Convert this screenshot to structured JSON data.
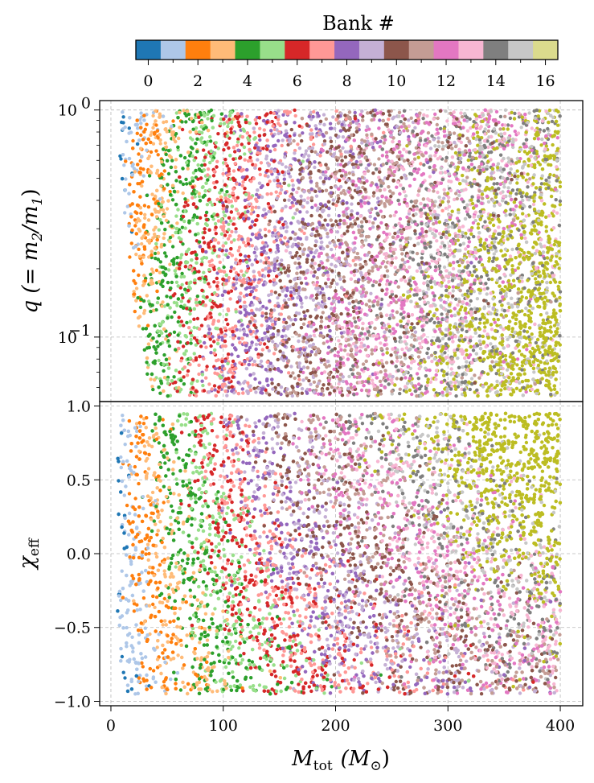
{
  "chart_data": {
    "type": "scatter",
    "colorbar": {
      "title": "Bank #",
      "ticks": [
        0,
        2,
        4,
        6,
        8,
        10,
        12,
        14,
        16
      ],
      "tick_labels": [
        "0",
        "2",
        "4",
        "6",
        "8",
        "10",
        "12",
        "14",
        "16"
      ],
      "colors": [
        "#1f77b4",
        "#aec7e8",
        "#ff7f0e",
        "#ffbb78",
        "#2ca02c",
        "#98df8a",
        "#d62728",
        "#ff9896",
        "#9467bd",
        "#c5b0d5",
        "#8c564b",
        "#c49c94",
        "#e377c2",
        "#f7b6d2",
        "#7f7f7f",
        "#c7c7c7",
        "#dbdb8d"
      ]
    },
    "point_colors": [
      "#1f77b4",
      "#aec7e8",
      "#ff7f0e",
      "#ffbb78",
      "#2ca02c",
      "#98df8a",
      "#d62728",
      "#ff9896",
      "#9467bd",
      "#c5b0d5",
      "#8c564b",
      "#c49c94",
      "#e377c2",
      "#f7b6d2",
      "#7f7f7f",
      "#c7c7c7",
      "#bcbd22"
    ],
    "x": {
      "label_main": "M",
      "label_sub": "tot",
      "label_unit_open": "(M",
      "label_unit_sub": "⊙",
      "label_unit_close": ")",
      "lim": [
        -10,
        420
      ],
      "ticks": [
        0,
        100,
        200,
        300,
        400
      ],
      "tick_labels": [
        "0",
        "100",
        "200",
        "300",
        "400"
      ]
    },
    "panels": [
      {
        "name": "top",
        "ylabel_parts": [
          "q  (= m",
          "2",
          "/m",
          "1",
          ")"
        ],
        "yscale": "log",
        "ylim": [
          0.052,
          1.1
        ],
        "major_ticks": [
          0.1,
          1
        ],
        "tick_labels": [
          "10",
          "10"
        ],
        "tick_exponents": [
          "−1",
          "0"
        ],
        "data_range": {
          "mtot": [
            6,
            400
          ],
          "q": [
            0.055,
            1.0
          ]
        }
      },
      {
        "name": "bottom",
        "ylabel_main": "χ",
        "ylabel_sub": "eff",
        "yscale": "linear",
        "ylim": [
          -1.03,
          1.03
        ],
        "major_ticks": [
          -1.0,
          -0.5,
          0.0,
          0.5,
          1.0
        ],
        "tick_labels": [
          "−1.0",
          "−0.5",
          "0.0",
          "0.5",
          "1.0"
        ],
        "data_range": {
          "mtot": [
            6,
            400
          ],
          "chi_eff": [
            -0.95,
            0.95
          ]
        }
      }
    ],
    "grid": true
  }
}
